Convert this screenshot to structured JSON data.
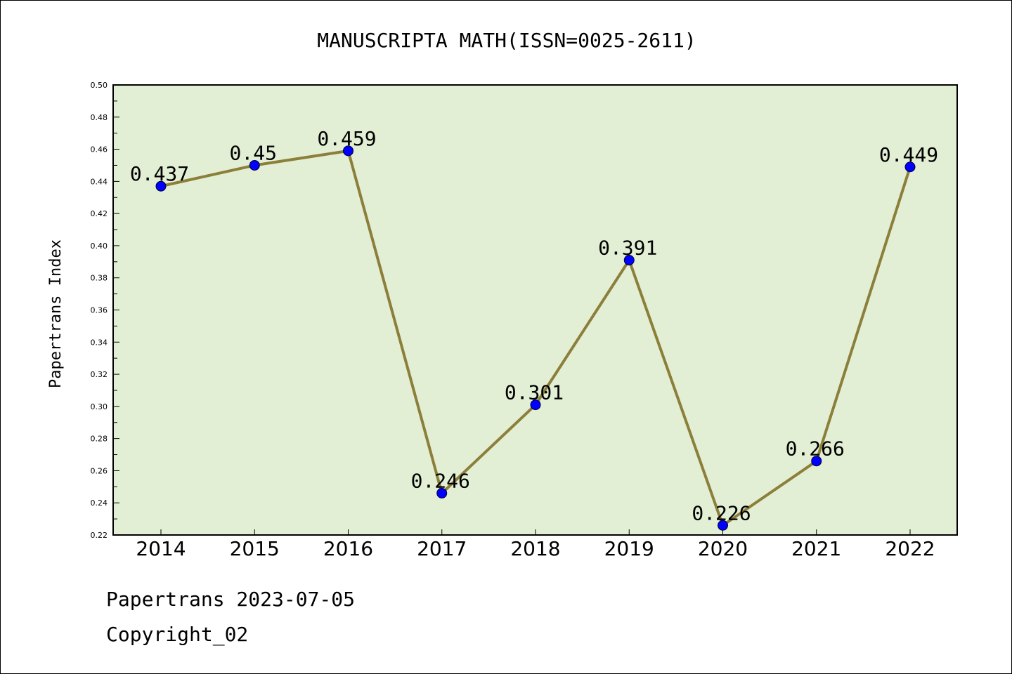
{
  "chart_data": {
    "type": "line",
    "title": "MANUSCRIPTA MATH(ISSN=0025-2611)",
    "xlabel": "",
    "ylabel": "Papertrans Index",
    "categories": [
      "2014",
      "2015",
      "2016",
      "2017",
      "2018",
      "2019",
      "2020",
      "2021",
      "2022"
    ],
    "series": [
      {
        "values": [
          0.437,
          0.45,
          0.459,
          0.246,
          0.301,
          0.391,
          0.226,
          0.266,
          0.449
        ],
        "labels": [
          "0.437",
          "0.45",
          "0.459",
          "0.246",
          "0.301",
          "0.391",
          "0.226",
          "0.266",
          "0.449"
        ]
      }
    ],
    "ylim": [
      0.22,
      0.5
    ],
    "yticks": [
      "0.22",
      "0.24",
      "0.26",
      "0.28",
      "0.30",
      "0.32",
      "0.34",
      "0.36",
      "0.38",
      "0.40",
      "0.42",
      "0.44",
      "0.46",
      "0.48",
      "0.50"
    ],
    "grid": false,
    "colors": {
      "plot_background": "#e2efd5",
      "line": "#8c7f3a",
      "marker": "#0000ff"
    }
  },
  "footer": {
    "date_line": "Papertrans 2023-07-05",
    "copyright_line": "Copyright_02"
  }
}
